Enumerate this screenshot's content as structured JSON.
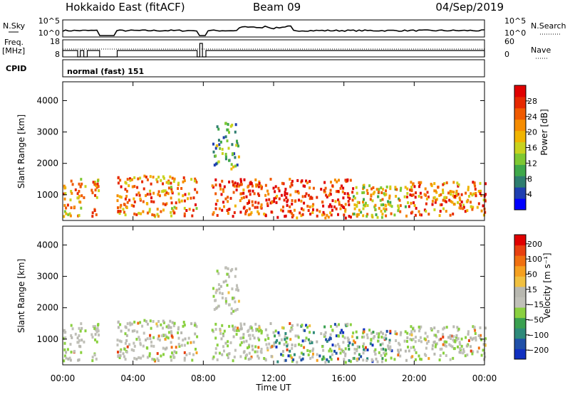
{
  "header": {
    "station": "Hokkaido East (fitACF)",
    "beam": "Beam 09",
    "date": "04/Sep/2019"
  },
  "strip": {
    "nsky_label": "N.Sky",
    "nsky_ticks": [
      "10^5",
      "10^0"
    ],
    "nsearch_label": "N.Search",
    "nsearch_ticks": [
      "10^5",
      "10^0"
    ],
    "freq_label": "Freq.",
    "freq_unit": "[MHz]",
    "freq_ticks": [
      "18",
      "8"
    ],
    "nave_label": "Nave",
    "nave_ticks": [
      "60",
      "0"
    ],
    "cpid_label": "CPID",
    "cpid_value": "normal (fast) 151"
  },
  "chart_data": [
    {
      "type": "heatmap",
      "name": "power-panel",
      "ylabel": "Slant Range [km]",
      "xlabel": "Time UT",
      "ylim": [
        180,
        4600
      ],
      "yticks": [
        "1000",
        "2000",
        "3000",
        "4000"
      ],
      "xticks": [
        "00:00",
        "04:00",
        "08:00",
        "12:00",
        "16:00",
        "20:00",
        "00:00"
      ],
      "colorbar_label": "Power [dB]",
      "colorbar_ticks": [
        "4",
        "8",
        "12",
        "16",
        "20",
        "24",
        "28"
      ],
      "colorbar_colors": [
        "#0000ff",
        "#1f3fb0",
        "#2e7d6f",
        "#3fa84a",
        "#7ec832",
        "#c8d21e",
        "#f0b400",
        "#f58c00",
        "#f05a00",
        "#e62800",
        "#e00000"
      ]
    },
    {
      "type": "heatmap",
      "name": "velocity-panel",
      "ylabel": "Slant Range [km]",
      "xlabel": "Time UT",
      "ylim": [
        180,
        4600
      ],
      "yticks": [
        "1000",
        "2000",
        "3000",
        "4000"
      ],
      "xticks": [
        "00:00",
        "04:00",
        "08:00",
        "12:00",
        "16:00",
        "20:00",
        "00:00"
      ],
      "colorbar_label": "Velocity [m s⁻¹]",
      "colorbar_ticks": [
        "200",
        "100",
        "50",
        "15",
        "−15",
        "−50",
        "−100",
        "−200"
      ],
      "colorbar_colors": [
        "#1030c0",
        "#2050a8",
        "#2e8a7a",
        "#3aa050",
        "#8ad040",
        "#c0c0b8",
        "#b8b8b0",
        "#f0c040",
        "#f5a020",
        "#f07010",
        "#e84010",
        "#e00000"
      ]
    }
  ]
}
